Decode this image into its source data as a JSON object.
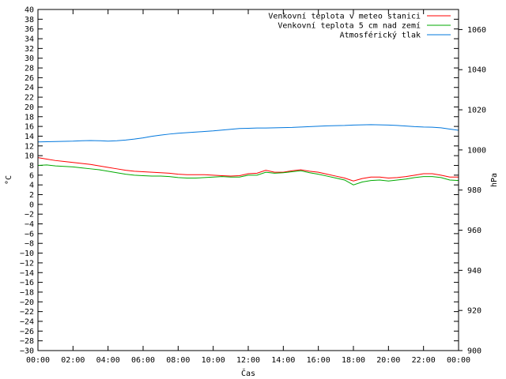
{
  "chart_data": {
    "type": "line",
    "title": "",
    "xlabel": "Čas",
    "ylabel": "°C",
    "y2label": "hPa",
    "ylim": [
      -30,
      40
    ],
    "y2lim": [
      900,
      1070
    ],
    "x_ticks": [
      "00:00",
      "02:00",
      "04:00",
      "06:00",
      "08:00",
      "10:00",
      "12:00",
      "14:00",
      "16:00",
      "18:00",
      "20:00",
      "22:00",
      "00:00"
    ],
    "y_ticks": [
      40,
      38,
      36,
      34,
      32,
      30,
      28,
      26,
      24,
      22,
      20,
      18,
      16,
      14,
      12,
      10,
      8,
      6,
      4,
      2,
      0,
      -2,
      -4,
      -6,
      -8,
      -10,
      -12,
      -14,
      -16,
      -18,
      -20,
      -22,
      -24,
      -26,
      -28,
      -30
    ],
    "y2_ticks": [
      1060,
      1040,
      1020,
      1000,
      980,
      960,
      940,
      920,
      900
    ],
    "x_hours": [
      0,
      0.5,
      1,
      1.5,
      2,
      2.5,
      3,
      3.5,
      4,
      4.5,
      5,
      5.5,
      6,
      6.5,
      7,
      7.5,
      8,
      8.5,
      9,
      9.5,
      10,
      10.5,
      11,
      11.5,
      12,
      12.5,
      13,
      13.5,
      14,
      14.5,
      15,
      15.5,
      16,
      16.5,
      17,
      17.5,
      18,
      18.5,
      19,
      19.5,
      20,
      20.5,
      21,
      21.5,
      22,
      22.5,
      23,
      23.5,
      24
    ],
    "legend_position": "top-right",
    "grid": false,
    "series": [
      {
        "name": "Venkovní teplota v meteo stanici",
        "axis": "left",
        "color": "#ff0000",
        "values": [
          9.6,
          9.3,
          9.0,
          8.8,
          8.6,
          8.4,
          8.2,
          7.9,
          7.6,
          7.3,
          7.0,
          6.8,
          6.7,
          6.6,
          6.5,
          6.4,
          6.2,
          6.1,
          6.1,
          6.1,
          6.0,
          5.9,
          5.8,
          5.9,
          6.3,
          6.4,
          7.0,
          6.6,
          6.6,
          6.9,
          7.1,
          6.8,
          6.6,
          6.2,
          5.8,
          5.4,
          4.8,
          5.3,
          5.6,
          5.6,
          5.4,
          5.5,
          5.7,
          6.0,
          6.3,
          6.3,
          6.0,
          5.6,
          5.6
        ]
      },
      {
        "name": "Venkovní teplota 5 cm nad zemí",
        "axis": "left",
        "color": "#00aa00",
        "values": [
          8.0,
          8.1,
          7.9,
          7.8,
          7.7,
          7.5,
          7.3,
          7.1,
          6.8,
          6.5,
          6.2,
          6.0,
          5.9,
          5.8,
          5.8,
          5.7,
          5.5,
          5.4,
          5.4,
          5.5,
          5.6,
          5.7,
          5.6,
          5.6,
          6.0,
          6.0,
          6.6,
          6.4,
          6.5,
          6.7,
          6.9,
          6.5,
          6.2,
          5.8,
          5.4,
          5.0,
          4.0,
          4.6,
          4.9,
          5.0,
          4.8,
          5.0,
          5.2,
          5.5,
          5.7,
          5.7,
          5.5,
          5.0,
          4.9
        ]
      },
      {
        "name": "Atmosférický tlak",
        "axis": "right",
        "color": "#0077dd",
        "values": [
          1004.0,
          1004.1,
          1004.2,
          1004.3,
          1004.4,
          1004.6,
          1004.7,
          1004.6,
          1004.4,
          1004.6,
          1004.9,
          1005.4,
          1006.0,
          1006.8,
          1007.4,
          1007.9,
          1008.3,
          1008.6,
          1008.9,
          1009.2,
          1009.5,
          1009.9,
          1010.3,
          1010.7,
          1010.8,
          1010.9,
          1010.9,
          1011.0,
          1011.1,
          1011.2,
          1011.4,
          1011.6,
          1011.8,
          1012.0,
          1012.1,
          1012.2,
          1012.4,
          1012.5,
          1012.6,
          1012.5,
          1012.4,
          1012.2,
          1011.9,
          1011.6,
          1011.4,
          1011.3,
          1011.0,
          1010.4,
          1009.8
        ]
      }
    ]
  }
}
